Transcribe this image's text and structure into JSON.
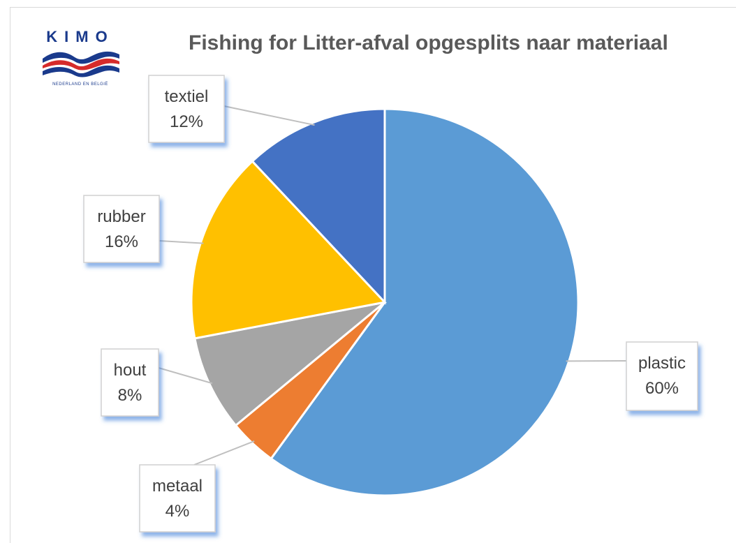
{
  "logo": {
    "name": "KIMO",
    "subtitle": "NEDERLAND EN BELGIË"
  },
  "chart_data": {
    "type": "pie",
    "title": "Fishing for Litter-afval opgesplits naar materiaal",
    "slices": [
      {
        "label": "plastic",
        "value": 60,
        "display": "60%",
        "color": "#5b9bd5"
      },
      {
        "label": "metaal",
        "value": 4,
        "display": "4%",
        "color": "#ed7d31"
      },
      {
        "label": "hout",
        "value": 8,
        "display": "8%",
        "color": "#a5a5a5"
      },
      {
        "label": "rubber",
        "value": 16,
        "display": "16%",
        "color": "#ffc000"
      },
      {
        "label": "textiel",
        "value": 12,
        "display": "12%",
        "color": "#4472c4"
      }
    ],
    "legend": "none"
  }
}
